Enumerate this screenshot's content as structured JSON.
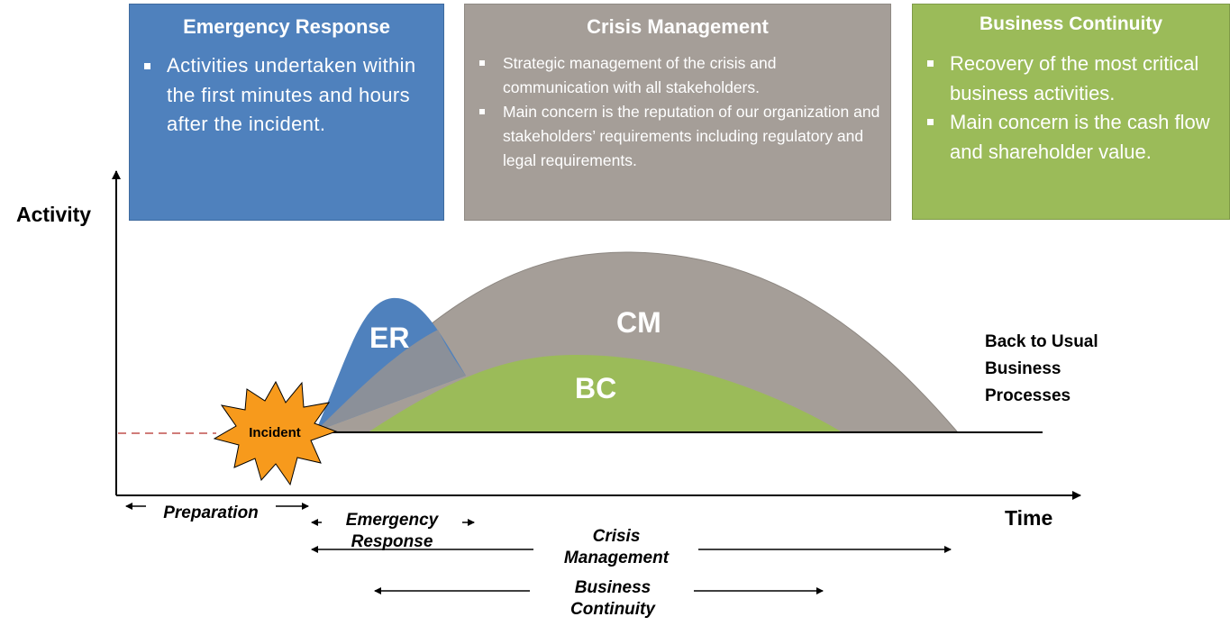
{
  "boxes": {
    "er": {
      "title": "Emergency Response",
      "bullets": [
        "Activities undertaken within the first minutes and hours after the incident."
      ]
    },
    "cm": {
      "title": "Crisis Management",
      "bullets": [
        "Strategic management of the crisis and communication with all stakeholders.",
        "Main concern is the reputation of our organization and stakeholders’ requirements including regulatory and legal requirements."
      ]
    },
    "bc": {
      "title": "Business Continuity",
      "bullets": [
        "Recovery of  the most critical business activities.",
        "Main concern is the cash flow and shareholder value."
      ]
    }
  },
  "axes": {
    "y_label": "Activity",
    "x_label": "Time"
  },
  "curves": {
    "er": "ER",
    "cm": "CM",
    "bc": "BC"
  },
  "incident_label": "Incident",
  "back_to_usual": [
    "Back to Usual",
    "Business",
    "Processes"
  ],
  "timeline": {
    "preparation": "Preparation",
    "emergency_response": [
      "Emergency",
      "Response"
    ],
    "crisis_management": [
      "Crisis",
      "Management"
    ],
    "business_continuity": [
      "Business",
      "Continuity"
    ]
  },
  "colors": {
    "er_blue": "#4f81bd",
    "cm_gray": "#a59e98",
    "bc_green": "#9bbb59",
    "incident_orange": "#f79a1c",
    "dashed_red": "#c0504d"
  }
}
